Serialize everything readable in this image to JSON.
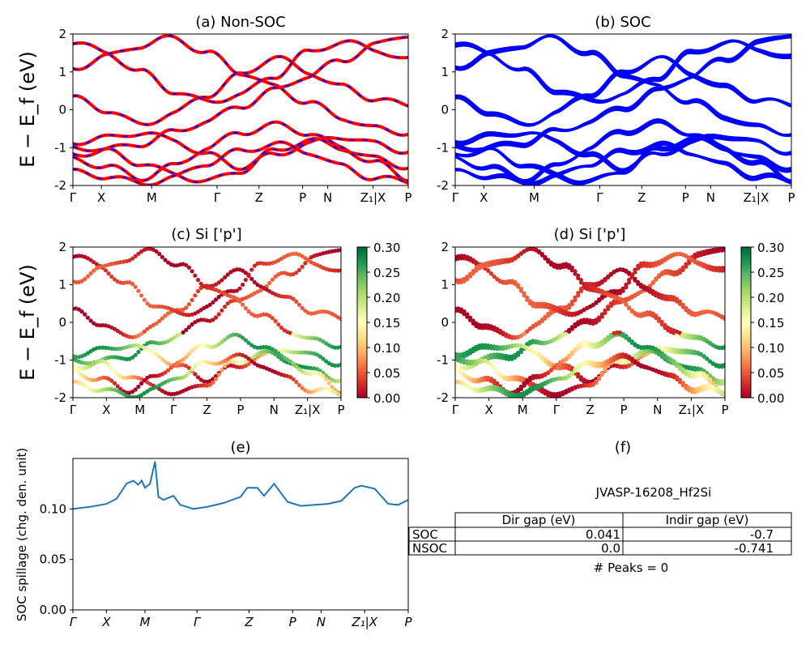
{
  "figure": {
    "id_label": "JVASP-16208_Hf2Si",
    "peaks_label": "# Peaks = 0"
  },
  "panels": {
    "a": {
      "title": "(a) Non-SOC"
    },
    "b": {
      "title": "(b) SOC"
    },
    "c": {
      "title": "(c)  Si ['p']"
    },
    "d": {
      "title": "(d) Si ['p']"
    },
    "e": {
      "title": "(e)"
    },
    "f": {
      "title": "(f)"
    }
  },
  "axes": {
    "band_ylabel": "E − E_f (eV)",
    "spillage_ylabel": "SOC spillage (chg. den. unit)"
  },
  "colors": {
    "nonsoc_line": "#ff0000",
    "nonsoc_dash": "#0000ff",
    "soc_line": "#0000ff",
    "spillage_line": "#1f77b4",
    "cmap": [
      "#a50026",
      "#d73027",
      "#f46d43",
      "#fdae61",
      "#fee08b",
      "#ffffbf",
      "#d9ef8b",
      "#a6d96a",
      "#66bd63",
      "#1a9850",
      "#006837"
    ]
  },
  "table": {
    "headers": [
      "Dir gap (eV)",
      "Indir gap (eV)"
    ],
    "rows": [
      {
        "label": "SOC",
        "dir": "0.041",
        "indir": "-0.7"
      },
      {
        "label": "NSOC",
        "dir": "0.0",
        "indir": "-0.741"
      }
    ]
  },
  "chart_data": [
    {
      "type": "line",
      "panel": "a",
      "title": "(a) Non-SOC",
      "ylabel": "E − E_f (eV)",
      "ylim": [
        -2,
        2
      ],
      "yticks": [
        -2,
        -1,
        0,
        1,
        2
      ],
      "kpath_labels": [
        "Γ",
        "X",
        "M",
        "Γ",
        "Z",
        "P",
        "N",
        "Z₁|X",
        "P"
      ],
      "kpath_positions": [
        0,
        0.085,
        0.235,
        0.43,
        0.555,
        0.685,
        0.76,
        0.895,
        1.0
      ],
      "series": [
        {
          "values": [
            -1.2,
            -1.05,
            -0.9,
            -0.6,
            -0.3,
            0.1,
            0.5,
            0.9,
            1.3,
            1.7,
            2.0
          ]
        },
        {
          "values": [
            -0.85,
            -0.75,
            -0.6,
            -0.8,
            -1.2,
            -1.5,
            -1.2,
            -0.9,
            -0.7,
            -0.9,
            -1.1
          ]
        },
        {
          "values": [
            -0.95,
            -1.1,
            -1.4,
            -1.7,
            -1.9,
            -1.6,
            -1.1,
            -0.8,
            -1.0,
            -1.3,
            -1.5
          ]
        },
        {
          "values": [
            -1.3,
            -1.5,
            -1.8,
            -1.5,
            -1.0,
            -0.6,
            -0.4,
            -0.6,
            -1.0,
            -1.4,
            -1.8
          ]
        },
        {
          "values": [
            0.3,
            0.0,
            -0.4,
            -0.1,
            0.4,
            0.9,
            1.4,
            1.0,
            0.6,
            0.3,
            0.1
          ]
        },
        {
          "values": [
            1.8,
            1.5,
            1.0,
            0.5,
            0.2,
            0.4,
            0.9,
            1.5,
            1.8,
            1.6,
            1.3
          ]
        },
        {
          "values": [
            -1.65,
            -1.75,
            -1.95,
            -1.8,
            -1.4,
            -1.1,
            -0.9,
            -1.1,
            -1.5,
            -1.8,
            -1.9
          ]
        },
        {
          "values": [
            1.1,
            1.4,
            1.7,
            1.9,
            1.5,
            1.0,
            0.6,
            0.2,
            -0.2,
            -0.5,
            -0.6
          ]
        }
      ]
    },
    {
      "type": "line",
      "panel": "b",
      "title": "(b) SOC",
      "ylim": [
        -2,
        2
      ],
      "yticks": [
        -2,
        -1,
        0,
        1,
        2
      ],
      "kpath_labels": [
        "Γ",
        "X",
        "M",
        "Γ",
        "Z",
        "P",
        "N",
        "Z₁|X",
        "P"
      ],
      "kpath_positions": [
        0,
        0.085,
        0.235,
        0.43,
        0.555,
        0.685,
        0.76,
        0.895,
        1.0
      ],
      "series": [
        {
          "values": [
            -1.2,
            -1.05,
            -0.9,
            -0.6,
            -0.3,
            0.1,
            0.5,
            0.9,
            1.3,
            1.7,
            2.0
          ]
        },
        {
          "values": [
            -0.85,
            -0.75,
            -0.6,
            -0.8,
            -1.2,
            -1.5,
            -1.2,
            -0.9,
            -0.7,
            -0.9,
            -1.1
          ]
        },
        {
          "values": [
            -0.95,
            -1.1,
            -1.4,
            -1.7,
            -1.9,
            -1.6,
            -1.1,
            -0.8,
            -1.0,
            -1.3,
            -1.5
          ]
        },
        {
          "values": [
            -1.3,
            -1.5,
            -1.8,
            -1.5,
            -1.0,
            -0.6,
            -0.4,
            -0.6,
            -1.0,
            -1.4,
            -1.8
          ]
        },
        {
          "values": [
            0.3,
            0.0,
            -0.4,
            -0.1,
            0.4,
            0.9,
            1.4,
            1.0,
            0.6,
            0.3,
            0.1
          ]
        },
        {
          "values": [
            1.8,
            1.5,
            1.0,
            0.5,
            0.2,
            0.4,
            0.9,
            1.5,
            1.8,
            1.6,
            1.3
          ]
        },
        {
          "values": [
            -1.65,
            -1.75,
            -1.95,
            -1.8,
            -1.4,
            -1.1,
            -0.9,
            -1.1,
            -1.5,
            -1.8,
            -1.9
          ]
        },
        {
          "values": [
            1.1,
            1.4,
            1.7,
            1.9,
            1.5,
            1.0,
            0.6,
            0.2,
            -0.2,
            -0.5,
            -0.6
          ]
        }
      ]
    },
    {
      "type": "scatter",
      "panel": "c",
      "title": "(c)  Si ['p']",
      "ylabel": "E − E_f (eV)",
      "ylim": [
        -2,
        2
      ],
      "colorbar_ticks": [
        "0.00",
        "0.05",
        "0.10",
        "0.15",
        "0.20",
        "0.25",
        "0.30"
      ],
      "colorbar_range": [
        0,
        0.3
      ],
      "kpath_labels": [
        "Γ",
        "X",
        "M",
        "Γ",
        "Z",
        "P",
        "N",
        "Z₁|X",
        "P"
      ]
    },
    {
      "type": "scatter",
      "panel": "d",
      "title": "(d) Si ['p']",
      "ylim": [
        -2,
        2
      ],
      "colorbar_ticks": [
        "0.00",
        "0.05",
        "0.10",
        "0.15",
        "0.20",
        "0.25",
        "0.30"
      ],
      "colorbar_range": [
        0,
        0.3
      ],
      "kpath_labels": [
        "Γ",
        "X",
        "M",
        "Γ",
        "Z",
        "P",
        "N",
        "Z₁|X",
        "P"
      ]
    },
    {
      "type": "line",
      "panel": "e",
      "title": "(e)",
      "ylabel": "SOC spillage (chg. den. unit)",
      "ylim": [
        0,
        0.15
      ],
      "yticks": [
        "0.00",
        "0.05",
        "0.10"
      ],
      "kpath_labels": [
        "Γ",
        "X",
        "M",
        "Γ",
        "Z",
        "P",
        "N",
        "Z₁|X",
        "P"
      ],
      "kpath_positions": [
        0,
        0.1,
        0.215,
        0.37,
        0.525,
        0.655,
        0.74,
        0.87,
        1.0
      ],
      "x": [
        0,
        0.05,
        0.1,
        0.13,
        0.16,
        0.18,
        0.195,
        0.205,
        0.215,
        0.23,
        0.245,
        0.255,
        0.27,
        0.3,
        0.32,
        0.36,
        0.4,
        0.45,
        0.5,
        0.52,
        0.55,
        0.57,
        0.6,
        0.64,
        0.68,
        0.72,
        0.76,
        0.8,
        0.84,
        0.86,
        0.9,
        0.94,
        0.97,
        1.0
      ],
      "values": [
        0.1,
        0.102,
        0.105,
        0.11,
        0.125,
        0.128,
        0.124,
        0.128,
        0.121,
        0.125,
        0.147,
        0.112,
        0.109,
        0.113,
        0.104,
        0.1,
        0.102,
        0.106,
        0.112,
        0.121,
        0.121,
        0.113,
        0.125,
        0.107,
        0.103,
        0.104,
        0.105,
        0.108,
        0.121,
        0.123,
        0.12,
        0.105,
        0.104,
        0.109
      ]
    }
  ]
}
